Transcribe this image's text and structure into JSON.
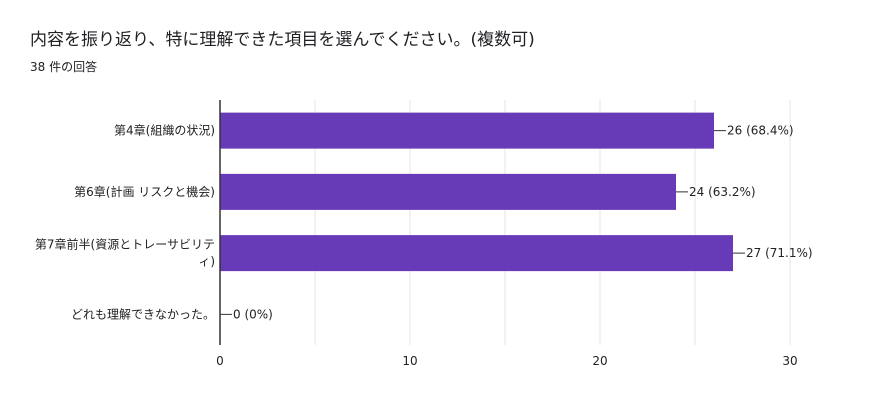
{
  "header": {
    "title": "内容を振り返り、特に理解できた項目を選んでください。(複数可)",
    "response_count": "38 件の回答"
  },
  "colors": {
    "bar": "#673ab7",
    "grid": "#e6e6e6",
    "axis": "#333333"
  },
  "chart_data": {
    "type": "bar",
    "orientation": "horizontal",
    "categories": [
      [
        "第4章(組織の状況)"
      ],
      [
        "第6章(計画 リスクと機会)"
      ],
      [
        "第7章前半(資源とトレーサビリテ",
        "ィ)"
      ],
      [
        "どれも理解できなかった。"
      ]
    ],
    "values": [
      26,
      24,
      27,
      0
    ],
    "value_labels": [
      "26 (68.4%)",
      "24 (63.2%)",
      "27 (71.1%)",
      "0 (0%)"
    ],
    "xlim": [
      0,
      30
    ],
    "xticks": [
      0,
      10,
      20,
      30
    ],
    "grid": true,
    "legend": "none"
  }
}
